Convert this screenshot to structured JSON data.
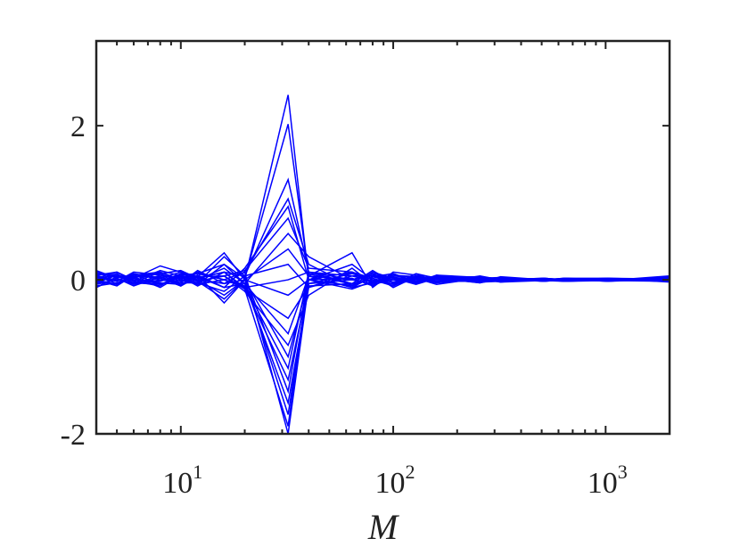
{
  "chart_data": {
    "type": "line",
    "title": "",
    "xlabel": "M",
    "ylabel": "",
    "xscale": "log",
    "xlim": [
      4,
      2000
    ],
    "ylim": [
      -2,
      3.1
    ],
    "grid": false,
    "line_color": "#0000ff",
    "xticks": [
      {
        "base": "10",
        "exp": "1",
        "value": 10
      },
      {
        "base": "10",
        "exp": "2",
        "value": 100
      },
      {
        "base": "10",
        "exp": "3",
        "value": 1000
      }
    ],
    "yticks": [
      {
        "label": "-2",
        "value": -2
      },
      {
        "label": "0",
        "value": 0
      },
      {
        "label": "2",
        "value": 2
      }
    ],
    "x": [
      4,
      5,
      6,
      8,
      10,
      12,
      16,
      20,
      32,
      40,
      64,
      80,
      100,
      128,
      160,
      256,
      320,
      512,
      640,
      1024,
      2000
    ],
    "series": [
      {
        "values": [
          0.08,
          0.05,
          0.02,
          0.18,
          0.1,
          0.04,
          0.35,
          0.0,
          2.4,
          0.0,
          -0.12,
          -0.02,
          0.06,
          0.03,
          0.01,
          -0.03,
          0.02,
          0.01,
          0.0,
          0.0,
          0.02
        ]
      },
      {
        "values": [
          0.02,
          0.06,
          -0.04,
          0.1,
          0.0,
          -0.06,
          0.2,
          0.02,
          2.02,
          0.05,
          -0.1,
          0.04,
          -0.03,
          0.05,
          0.0,
          0.02,
          -0.02,
          0.01,
          -0.01,
          0.01,
          -0.02
        ]
      },
      {
        "values": [
          -0.05,
          0.0,
          0.04,
          0.08,
          0.12,
          0.02,
          0.1,
          0.05,
          1.3,
          0.1,
          0.0,
          -0.06,
          0.08,
          -0.02,
          0.04,
          0.0,
          0.03,
          -0.01,
          0.02,
          -0.01,
          0.05
        ]
      },
      {
        "values": [
          0.1,
          0.03,
          0.06,
          -0.05,
          0.0,
          0.1,
          0.0,
          0.1,
          1.05,
          0.2,
          -0.08,
          0.1,
          0.02,
          0.0,
          -0.04,
          0.05,
          0.0,
          0.02,
          0.0,
          0.02,
          0.0
        ]
      },
      {
        "values": [
          0.0,
          -0.06,
          0.08,
          0.02,
          -0.08,
          0.06,
          -0.1,
          0.15,
          0.95,
          0.0,
          0.2,
          0.0,
          -0.06,
          0.08,
          0.02,
          -0.04,
          0.04,
          0.0,
          0.01,
          -0.02,
          0.03
        ]
      },
      {
        "values": [
          0.06,
          0.1,
          -0.02,
          0.12,
          0.05,
          -0.02,
          0.05,
          0.12,
          0.8,
          0.15,
          0.1,
          -0.04,
          0.04,
          -0.05,
          0.06,
          0.03,
          -0.03,
          0.02,
          -0.02,
          0.0,
          -0.01
        ]
      },
      {
        "values": [
          -0.1,
          0.04,
          0.0,
          -0.02,
          0.08,
          0.0,
          0.15,
          -0.05,
          0.6,
          0.3,
          0.0,
          0.08,
          -0.1,
          0.04,
          -0.02,
          -0.02,
          0.02,
          -0.02,
          0.01,
          0.01,
          0.01
        ]
      },
      {
        "values": [
          0.04,
          -0.02,
          0.1,
          0.06,
          -0.04,
          0.12,
          -0.05,
          0.0,
          0.4,
          0.05,
          0.35,
          -0.1,
          0.1,
          0.06,
          0.03,
          0.04,
          0.01,
          0.01,
          -0.01,
          -0.01,
          0.04
        ]
      },
      {
        "values": [
          0.0,
          0.08,
          -0.06,
          0.0,
          0.02,
          -0.04,
          0.3,
          0.05,
          0.2,
          -0.1,
          0.05,
          0.05,
          0.0,
          -0.04,
          0.05,
          -0.01,
          -0.02,
          0.0,
          0.02,
          0.02,
          -0.03
        ]
      },
      {
        "values": [
          -0.08,
          -0.04,
          0.04,
          -0.1,
          0.06,
          0.08,
          0.0,
          -0.1,
          0.0,
          0.1,
          -0.05,
          0.12,
          -0.04,
          0.02,
          -0.06,
          0.02,
          0.03,
          -0.02,
          0.0,
          0.0,
          0.02
        ]
      },
      {
        "values": [
          0.12,
          0.02,
          -0.08,
          0.04,
          -0.06,
          0.0,
          -0.2,
          0.0,
          -0.2,
          0.0,
          0.1,
          -0.08,
          0.06,
          -0.02,
          0.04,
          0.0,
          -0.01,
          0.01,
          0.01,
          -0.01,
          -0.02
        ]
      },
      {
        "values": [
          -0.02,
          0.06,
          0.02,
          -0.06,
          0.04,
          -0.08,
          0.1,
          -0.12,
          -0.5,
          -0.08,
          -0.05,
          0.0,
          -0.08,
          0.05,
          0.0,
          -0.03,
          0.02,
          0.0,
          -0.02,
          0.01,
          0.0
        ]
      },
      {
        "values": [
          0.05,
          -0.05,
          0.06,
          0.08,
          -0.02,
          0.04,
          -0.1,
          -0.05,
          -0.7,
          0.05,
          0.0,
          0.06,
          0.02,
          -0.06,
          0.02,
          0.04,
          0.0,
          0.02,
          0.0,
          0.0,
          0.03
        ]
      },
      {
        "values": [
          -0.06,
          0.0,
          -0.04,
          0.02,
          0.1,
          -0.02,
          0.05,
          -0.15,
          -0.85,
          -0.2,
          0.15,
          -0.06,
          0.0,
          0.04,
          -0.04,
          0.01,
          -0.03,
          -0.01,
          0.01,
          -0.02,
          0.01
        ]
      },
      {
        "values": [
          0.08,
          0.04,
          0.0,
          -0.04,
          -0.06,
          0.06,
          -0.3,
          0.0,
          -1.0,
          0.0,
          -0.08,
          0.04,
          0.08,
          -0.03,
          0.06,
          -0.02,
          0.02,
          0.01,
          -0.01,
          0.01,
          -0.01
        ]
      },
      {
        "values": [
          0.0,
          -0.08,
          0.06,
          0.1,
          0.0,
          -0.06,
          0.0,
          -0.08,
          -1.15,
          0.1,
          0.05,
          -0.02,
          -0.05,
          0.02,
          0.0,
          0.03,
          -0.01,
          0.0,
          0.02,
          0.0,
          0.02
        ]
      },
      {
        "values": [
          -0.04,
          0.06,
          -0.02,
          -0.08,
          0.08,
          0.02,
          0.1,
          -0.1,
          -1.3,
          -0.05,
          0.0,
          0.08,
          0.03,
          -0.05,
          0.03,
          -0.04,
          0.01,
          -0.02,
          0.0,
          0.01,
          0.0
        ]
      },
      {
        "values": [
          0.06,
          -0.02,
          0.08,
          0.0,
          -0.04,
          -0.04,
          -0.15,
          0.05,
          -1.45,
          0.05,
          -0.1,
          -0.04,
          0.06,
          0.04,
          -0.02,
          0.02,
          0.0,
          0.01,
          -0.01,
          -0.01,
          0.02
        ]
      },
      {
        "values": [
          -0.1,
          0.02,
          -0.06,
          0.06,
          0.02,
          0.08,
          0.2,
          -0.05,
          -1.6,
          -0.1,
          0.1,
          0.02,
          -0.06,
          0.0,
          0.05,
          0.0,
          0.02,
          0.0,
          0.01,
          0.0,
          -0.02
        ]
      },
      {
        "values": [
          0.02,
          0.1,
          0.0,
          -0.02,
          0.06,
          -0.02,
          -0.25,
          0.0,
          -1.75,
          0.0,
          0.02,
          -0.08,
          0.04,
          -0.04,
          0.01,
          -0.03,
          -0.02,
          0.02,
          0.0,
          0.02,
          0.01
        ]
      },
      {
        "values": [
          -0.02,
          -0.06,
          0.04,
          0.04,
          -0.08,
          0.04,
          0.05,
          -0.12,
          -1.9,
          0.08,
          -0.06,
          0.06,
          0.0,
          0.03,
          -0.03,
          0.02,
          0.01,
          -0.01,
          -0.02,
          -0.01,
          0.0
        ]
      },
      {
        "values": [
          0.04,
          0.0,
          -0.04,
          -0.06,
          0.04,
          0.0,
          -0.05,
          0.1,
          -2.0,
          -0.05,
          0.08,
          0.0,
          -0.03,
          0.01,
          0.02,
          -0.01,
          0.0,
          0.0,
          0.01,
          0.0,
          0.03
        ]
      }
    ]
  }
}
